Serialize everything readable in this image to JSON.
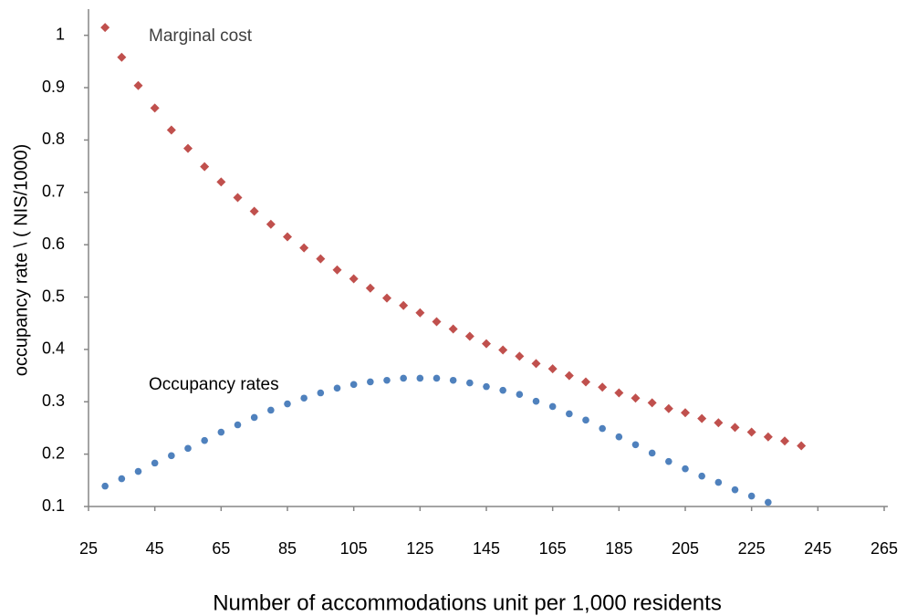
{
  "chart_data": {
    "type": "scatter",
    "x_label": "Number of accommodations unit per 1,000 residents",
    "y_label": "occupancy rate   \\ ( NIS/1000)",
    "annotations": [
      "Marginal cost",
      "Occupancy rates"
    ],
    "xlim": [
      25,
      265
    ],
    "xticks": [
      25,
      45,
      65,
      85,
      105,
      125,
      145,
      165,
      185,
      205,
      225,
      245,
      265
    ],
    "ylim": [
      0.1,
      1.05
    ],
    "yticks": [
      0.1,
      0.2,
      0.3,
      0.4,
      0.5,
      0.6,
      0.7,
      0.8,
      0.9,
      1
    ],
    "series": [
      {
        "name": "Marginal cost",
        "color": "#c0504d",
        "marker": "diamond",
        "x": [
          30,
          35,
          40,
          45,
          50,
          55,
          60,
          65,
          70,
          75,
          80,
          85,
          90,
          95,
          100,
          105,
          110,
          115,
          120,
          125,
          130,
          135,
          140,
          145,
          150,
          155,
          160,
          165,
          170,
          175,
          180,
          185,
          190,
          195,
          200,
          205,
          210,
          215,
          220,
          225,
          230,
          235,
          240
        ],
        "values": [
          1.015,
          0.958,
          0.904,
          0.861,
          0.819,
          0.784,
          0.749,
          0.72,
          0.69,
          0.664,
          0.639,
          0.615,
          0.594,
          0.573,
          0.552,
          0.535,
          0.517,
          0.498,
          0.484,
          0.47,
          0.453,
          0.439,
          0.425,
          0.411,
          0.399,
          0.387,
          0.373,
          0.363,
          0.35,
          0.338,
          0.328,
          0.317,
          0.307,
          0.298,
          0.287,
          0.279,
          0.268,
          0.26,
          0.251,
          0.242,
          0.233,
          0.225,
          0.216
        ]
      },
      {
        "name": "Occupancy rates",
        "color": "#4f81bd",
        "marker": "circle",
        "x": [
          30,
          35,
          40,
          45,
          50,
          55,
          60,
          65,
          70,
          75,
          80,
          85,
          90,
          95,
          100,
          105,
          110,
          115,
          120,
          125,
          130,
          135,
          140,
          145,
          150,
          155,
          160,
          165,
          170,
          175,
          180,
          185,
          190,
          195,
          200,
          205,
          210,
          215,
          220,
          225,
          230
        ],
        "values": [
          0.139,
          0.153,
          0.167,
          0.183,
          0.197,
          0.211,
          0.226,
          0.242,
          0.256,
          0.27,
          0.284,
          0.296,
          0.307,
          0.317,
          0.326,
          0.333,
          0.338,
          0.341,
          0.345,
          0.345,
          0.345,
          0.341,
          0.336,
          0.329,
          0.322,
          0.314,
          0.301,
          0.291,
          0.277,
          0.265,
          0.249,
          0.233,
          0.218,
          0.202,
          0.186,
          0.172,
          0.158,
          0.146,
          0.132,
          0.12,
          0.108
        ]
      }
    ]
  }
}
